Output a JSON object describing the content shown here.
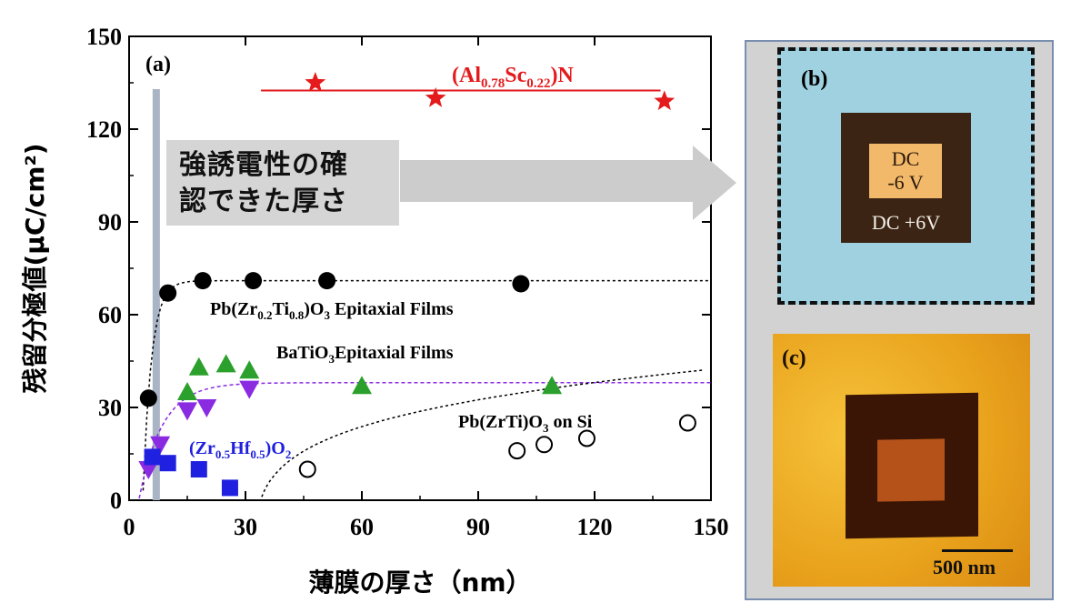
{
  "chart_data": {
    "type": "scatter",
    "xlabel": "薄膜の厚さ（nm）",
    "ylabel": "残留分極値(μC/cm²)",
    "xlim": [
      0,
      150
    ],
    "ylim": [
      0,
      150
    ],
    "xticks": [
      "0",
      "30",
      "60",
      "90",
      "120",
      "150"
    ],
    "yticks": [
      "0",
      "30",
      "60",
      "90",
      "120",
      "150"
    ],
    "panel_label": "(a)",
    "callout_text_line1": "強誘電性の確",
    "callout_text_line2": "認できた厚さ",
    "threshold_x": 7,
    "series": [
      {
        "name": "(Al0.78Sc0.22)N",
        "name_main": "(Al",
        "name_sub1": "0.78",
        "name_mid": "Sc",
        "name_sub2": "0.22",
        "name_end": ")N",
        "marker": "star",
        "color": "#e41a1c",
        "x": [
          48,
          79,
          138
        ],
        "y": [
          135,
          130,
          129
        ],
        "fit": [
          [
            34,
            132.5
          ],
          [
            137,
            132.5
          ]
        ]
      },
      {
        "name": "Pb(Zr0.2Ti0.8)O3 Epitaxial Films",
        "name_main": "Pb(Zr",
        "name_sub1": "0.2",
        "name_mid": "Ti",
        "name_sub2": "0.8",
        "name_mid2": ")O",
        "name_sub3": "3",
        "name_end": " Epitaxial Films",
        "marker": "filled-circle",
        "color": "#000000",
        "x": [
          5,
          10,
          19,
          32,
          51,
          101
        ],
        "y": [
          33,
          67,
          71,
          71,
          71,
          70
        ]
      },
      {
        "name": "BaTiO3Epitaxial Films",
        "name_main": "BaTiO",
        "name_sub1": "3",
        "name_end": "Epitaxial Films",
        "marker": "triangle-up",
        "color": "#2ca02c",
        "x": [
          15,
          18,
          25,
          31,
          60,
          109
        ],
        "y": [
          35,
          43,
          44,
          42,
          37,
          37
        ]
      },
      {
        "name": "(Zr0.5Hf0.5)O2",
        "name_main": "(Zr",
        "name_sub1": "0.5",
        "name_mid": "Hf",
        "name_sub2": "0.5",
        "name_end": ")O",
        "name_sub3": "2",
        "marker": "triangle-down",
        "color": "#8a2be2",
        "x": [
          5,
          8,
          15,
          20,
          31
        ],
        "y": [
          10,
          18,
          29,
          30,
          36
        ]
      },
      {
        "name": "(Zr0.5Hf0.5)O2 square",
        "marker": "square",
        "color": "#2020e0",
        "x": [
          6,
          10,
          18,
          26
        ],
        "y": [
          14,
          12,
          10,
          4
        ]
      },
      {
        "name": "Pb(ZrTi)O3 on Si",
        "name_main": "Pb(Zr",
        "name_mid": "Ti)O",
        "name_sub1": "3",
        "name_end": " on Si",
        "marker": "open-circle",
        "color": "#000000",
        "x": [
          46,
          100,
          107,
          118,
          144
        ],
        "y": [
          10,
          16,
          18,
          20,
          25
        ]
      }
    ]
  },
  "panel_b": {
    "label": "(b)",
    "inner_line1": "DC",
    "inner_line2": "-6 V",
    "outer_text": "DC +6V"
  },
  "panel_c": {
    "label": "(c)",
    "scale_text": "500 nm"
  }
}
